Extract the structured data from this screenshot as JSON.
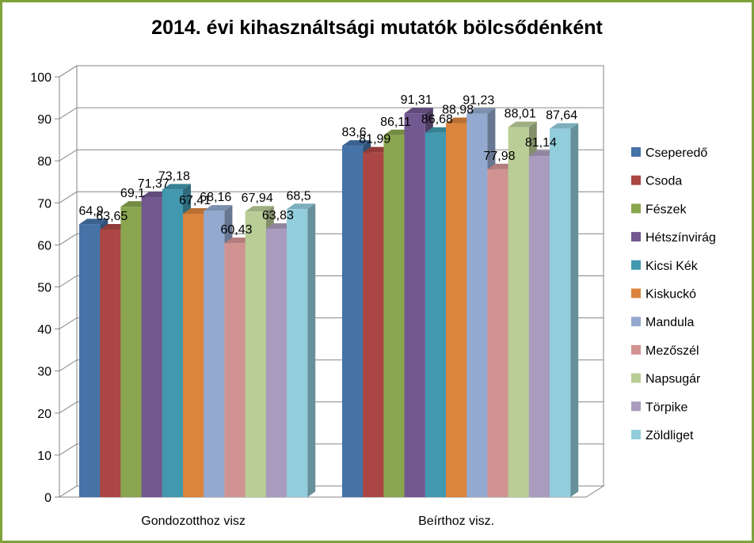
{
  "chart_data": {
    "type": "bar",
    "title": "2014. évi kihasználtsági mutatók bölcsődénként",
    "categories": [
      "Gondozotthoz visz",
      "Beírthoz visz."
    ],
    "ylim": [
      0,
      100
    ],
    "yticks": [
      0,
      10,
      20,
      30,
      40,
      50,
      60,
      70,
      80,
      90,
      100
    ],
    "grid": true,
    "legend_position": "right",
    "series": [
      {
        "name": "Cseperedő",
        "color": "#4572a7",
        "values": [
          64.9,
          83.6
        ],
        "labels": [
          "64,9",
          "83,6"
        ]
      },
      {
        "name": "Csoda",
        "color": "#aa4643",
        "values": [
          63.65,
          81.99
        ],
        "labels": [
          "63,65",
          "81,99"
        ]
      },
      {
        "name": "Fészek",
        "color": "#89a54e",
        "values": [
          69.1,
          86.11
        ],
        "labels": [
          "69,1",
          "86,11"
        ]
      },
      {
        "name": "Hétszínvirág",
        "color": "#71588f",
        "values": [
          71.37,
          91.31
        ],
        "labels": [
          "71,37",
          "91,31"
        ]
      },
      {
        "name": "Kicsi Kék",
        "color": "#4198af",
        "values": [
          73.18,
          86.68
        ],
        "labels": [
          "73,18",
          "86,68"
        ]
      },
      {
        "name": "Kiskuckó",
        "color": "#db843d",
        "values": [
          67.41,
          88.98
        ],
        "labels": [
          "67,41",
          "88,98"
        ]
      },
      {
        "name": "Mandula",
        "color": "#93a9cf",
        "values": [
          68.16,
          91.23
        ],
        "labels": [
          "68,16",
          "91,23"
        ]
      },
      {
        "name": "Mezőszél",
        "color": "#d19392",
        "values": [
          60.43,
          77.98
        ],
        "labels": [
          "60,43",
          "77,98"
        ]
      },
      {
        "name": "Napsugár",
        "color": "#b9cd96",
        "values": [
          67.94,
          88.01
        ],
        "labels": [
          "67,94",
          "88,01"
        ]
      },
      {
        "name": "Törpike",
        "color": "#a99bbd",
        "values": [
          63.83,
          81.14
        ],
        "labels": [
          "63,83",
          "81,14"
        ]
      },
      {
        "name": "Zöldliget",
        "color": "#92cddc",
        "values": [
          68.5,
          87.64
        ],
        "labels": [
          "68,5",
          "87,64"
        ]
      }
    ]
  }
}
